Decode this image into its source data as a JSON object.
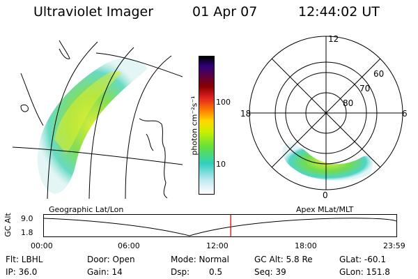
{
  "header": {
    "title": "Ultraviolet Imager",
    "date": "01 Apr 07",
    "time": "12:44:02 UT"
  },
  "colorbar": {
    "unit_label": "photon cm⁻²s⁻¹",
    "ticks": [
      "100",
      "10"
    ]
  },
  "polar": {
    "mlt_labels": [
      "12",
      "18",
      "6",
      "0"
    ],
    "lat_labels": [
      "60",
      "70",
      "80"
    ]
  },
  "panels": {
    "left_label": "Geographic Lat/Lon",
    "right_label": "Apex MLat/MLT"
  },
  "altitude_plot": {
    "ylabel": "GC Alt",
    "yticks": [
      "9.0",
      "1.8"
    ],
    "xticks": [
      "00:00",
      "06:00",
      "12:00",
      "18:00",
      "23:59"
    ],
    "current_time_fraction": 0.53
  },
  "info": {
    "flt": "Flt: LBHL",
    "ip": "IP: 36.0",
    "door": "Door: Open",
    "gain": "Gain: 14",
    "mode": "Mode: Normal",
    "dsp_label": "Dsp:",
    "dsp_value": "0.5",
    "gc_alt": "GC Alt: 5.8 Re",
    "seq": "Seq: 39",
    "glat": "GLat: -60.1",
    "glon": "GLon: 151.8"
  },
  "colors": {
    "line": "#000000",
    "marker": "#e00000"
  }
}
